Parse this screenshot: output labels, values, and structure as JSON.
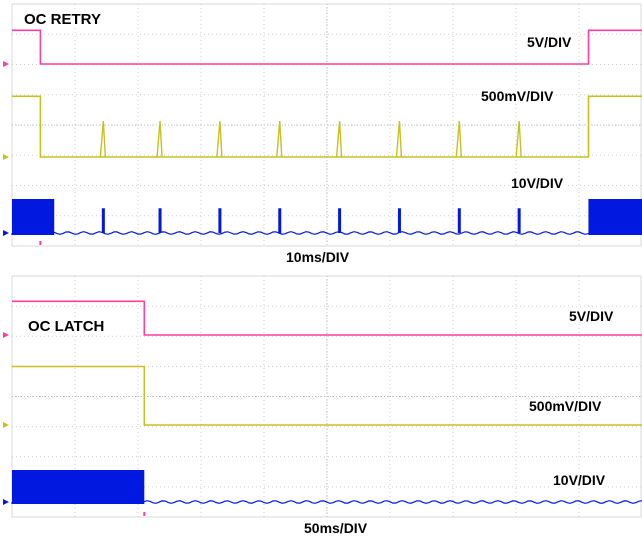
{
  "chart_data": [
    {
      "type": "line",
      "title": "OC RETRY",
      "xlabel": "10ms/DIV",
      "grid": true,
      "series": [
        {
          "scale": "5V/DIV",
          "color": "#ff3fa0",
          "x_div": [
            0,
            0.45,
            0.45,
            9.15,
            9.15,
            10
          ],
          "y_div": [
            1.5,
            1.5,
            0,
            0,
            1.5,
            1.5
          ]
        },
        {
          "scale": "500mV/DIV",
          "color": "#c8c020",
          "x_div": [
            0,
            0.45,
            0.45,
            9.15,
            9.15,
            10
          ],
          "y_div": [
            2.7,
            2.7,
            0,
            0,
            2.7,
            2.7
          ],
          "pulses_at_div": [
            1.45,
            2.35,
            3.3,
            4.25,
            5.2,
            6.15,
            7.1,
            8.05
          ],
          "pulse_height_div": 1.6
        },
        {
          "scale": "10V/DIV",
          "color": "#0018e0",
          "switching_bursts_div": [
            [
              0,
              0.67
            ],
            [
              9.15,
              10
            ]
          ],
          "pulses_at_div": [
            1.45,
            2.35,
            3.3,
            4.25,
            5.2,
            6.15,
            7.1,
            8.05
          ],
          "pulse_height_div": 1.1
        }
      ]
    },
    {
      "type": "line",
      "title": "OC LATCH",
      "xlabel": "50ms/DIV",
      "grid": true,
      "series": [
        {
          "scale": "5V/DIV",
          "color": "#ff3fa0",
          "x_div": [
            0,
            2.1,
            2.1,
            10
          ],
          "y_div": [
            1.5,
            1.5,
            0,
            0
          ]
        },
        {
          "scale": "500mV/DIV",
          "color": "#c8c020",
          "x_div": [
            0,
            2.1,
            2.1,
            10
          ],
          "y_div": [
            2.6,
            2.6,
            0,
            0
          ]
        },
        {
          "scale": "10V/DIV",
          "color": "#0018e0",
          "switching_bursts_div": [
            [
              0,
              2.1
            ]
          ]
        }
      ]
    }
  ]
}
